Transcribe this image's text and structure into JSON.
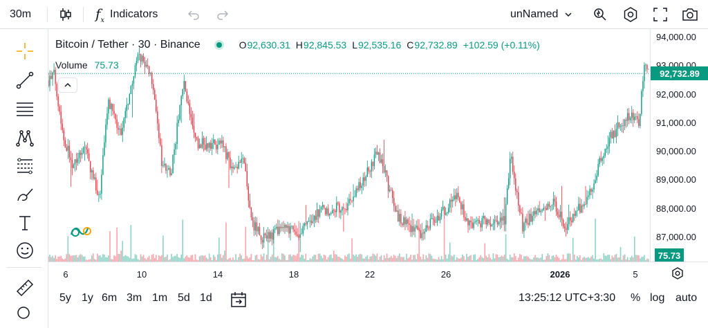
{
  "topbar": {
    "interval": "30m",
    "indicators_label": "Indicators",
    "layout_name": "unNamed"
  },
  "legend": {
    "symbol": "Bitcoin / Tether · 30 · Binance",
    "o_label": "O",
    "o_value": "92,630.31",
    "h_label": "H",
    "h_value": "92,845.53",
    "l_label": "L",
    "l_value": "92,535.16",
    "c_label": "C",
    "c_value": "92,732.89",
    "change": "+102.59 (+0.11%)",
    "volume_label": "Volume",
    "volume_value": "75.73"
  },
  "price_axis": {
    "labels": [
      "94,000.00",
      "93,000.00",
      "92,000.00",
      "91,000.00",
      "90,000.00",
      "89,000.00",
      "88,000.00",
      "87,000.00"
    ],
    "current_price": "92,732.89",
    "current_volume": "75.73"
  },
  "time_axis": {
    "labels": [
      "6",
      "10",
      "14",
      "18",
      "22",
      "26",
      "2026",
      "5"
    ]
  },
  "bottombar": {
    "ranges": [
      "5y",
      "1y",
      "6m",
      "3m",
      "1m",
      "5d",
      "1d"
    ],
    "clock": "13:25:12 UTC+3:30",
    "percent": "%",
    "log": "log",
    "auto": "auto"
  },
  "colors": {
    "up": "#089981",
    "down": "#f23645"
  },
  "chart_data": {
    "type": "candlestick",
    "symbol": "Bitcoin / Tether",
    "interval": "30",
    "exchange": "Binance",
    "ylim": [
      86200,
      94300
    ],
    "x_ticks": [
      "6",
      "10",
      "14",
      "18",
      "22",
      "26",
      "2026",
      "5"
    ],
    "y_ticks": [
      94000,
      93000,
      92000,
      91000,
      90000,
      89000,
      88000,
      87000
    ],
    "last_price": 92732.89,
    "close_anchors": [
      {
        "t": 0.0,
        "p": 92500
      },
      {
        "t": 0.01,
        "p": 92700
      },
      {
        "t": 0.025,
        "p": 90500
      },
      {
        "t": 0.04,
        "p": 89600
      },
      {
        "t": 0.06,
        "p": 90200
      },
      {
        "t": 0.085,
        "p": 88300
      },
      {
        "t": 0.1,
        "p": 91800
      },
      {
        "t": 0.12,
        "p": 90600
      },
      {
        "t": 0.15,
        "p": 93400
      },
      {
        "t": 0.17,
        "p": 92800
      },
      {
        "t": 0.19,
        "p": 89500
      },
      {
        "t": 0.205,
        "p": 89300
      },
      {
        "t": 0.225,
        "p": 92500
      },
      {
        "t": 0.245,
        "p": 90300
      },
      {
        "t": 0.29,
        "p": 90200
      },
      {
        "t": 0.31,
        "p": 89300
      },
      {
        "t": 0.325,
        "p": 89700
      },
      {
        "t": 0.34,
        "p": 87500
      },
      {
        "t": 0.36,
        "p": 86900
      },
      {
        "t": 0.39,
        "p": 87300
      },
      {
        "t": 0.42,
        "p": 87100
      },
      {
        "t": 0.45,
        "p": 87900
      },
      {
        "t": 0.5,
        "p": 88100
      },
      {
        "t": 0.55,
        "p": 90000
      },
      {
        "t": 0.58,
        "p": 87800
      },
      {
        "t": 0.62,
        "p": 87100
      },
      {
        "t": 0.68,
        "p": 88400
      },
      {
        "t": 0.7,
        "p": 87500
      },
      {
        "t": 0.76,
        "p": 87600
      },
      {
        "t": 0.77,
        "p": 89800
      },
      {
        "t": 0.79,
        "p": 87400
      },
      {
        "t": 0.84,
        "p": 88300
      },
      {
        "t": 0.86,
        "p": 87400
      },
      {
        "t": 0.9,
        "p": 88400
      },
      {
        "t": 0.93,
        "p": 90300
      },
      {
        "t": 0.965,
        "p": 91300
      },
      {
        "t": 0.985,
        "p": 91000
      },
      {
        "t": 0.993,
        "p": 93200
      },
      {
        "t": 1.0,
        "p": 92733
      }
    ]
  }
}
